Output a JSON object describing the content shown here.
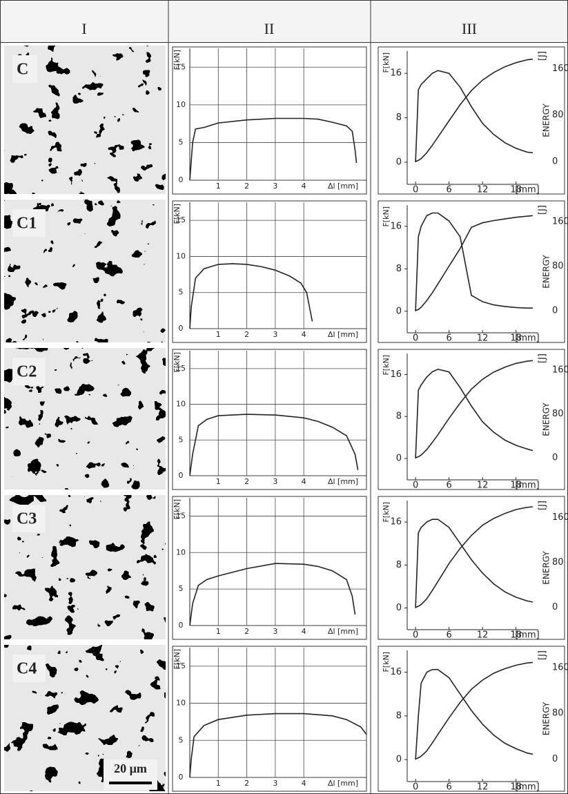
{
  "table": {
    "headers": [
      "I",
      "II",
      "III"
    ]
  },
  "samples": [
    {
      "label": "C"
    },
    {
      "label": "C1"
    },
    {
      "label": "C2"
    },
    {
      "label": "C3"
    },
    {
      "label": "C4"
    }
  ],
  "scale_bar": "20 µm",
  "chart_data": [
    {
      "type": "line",
      "ylabel": "F[kN]",
      "xlabel": "Δl [mm]",
      "color": "#222",
      "grid": true,
      "xlim": [
        0,
        6.2
      ],
      "ylim": [
        0,
        17.5
      ],
      "xticks": [
        1,
        2,
        3,
        4
      ],
      "yticks": [
        0,
        5,
        10,
        15
      ],
      "x": [
        0,
        0.1,
        0.2,
        0.5,
        1,
        2,
        3,
        4,
        4.5,
        5,
        5.5,
        5.7,
        5.8,
        5.85
      ],
      "values": [
        0,
        5,
        6.8,
        7,
        7.6,
        8,
        8.2,
        8.2,
        8.1,
        7.7,
        7.2,
        6.5,
        4,
        2.3
      ]
    },
    {
      "type": "line",
      "ylabel": "F[kN]",
      "xlabel": "[mm]",
      "y2label": "ENERGY",
      "y2unit": "[J]",
      "color": "#222",
      "grid": false,
      "xlim": [
        -1.5,
        22
      ],
      "ylim": [
        -2.5,
        20
      ],
      "y2lim": [
        -25,
        190
      ],
      "xticks": [
        0,
        6,
        12,
        18
      ],
      "yticks": [
        0,
        8,
        16
      ],
      "y2ticks": [
        0,
        80,
        160
      ],
      "x": [
        0,
        0.5,
        1,
        2,
        3,
        4,
        6,
        8,
        10,
        12,
        14,
        16,
        18,
        20,
        21
      ],
      "series": [
        {
          "values": [
            0,
            13,
            14,
            15,
            16,
            16.5,
            16,
            13.5,
            10,
            7,
            5,
            3.5,
            2.5,
            1.8,
            1.7
          ]
        },
        {
          "axis": "y2",
          "values": [
            0,
            2,
            5,
            15,
            28,
            42,
            70,
            98,
            122,
            140,
            153,
            163,
            170,
            175,
            176
          ]
        }
      ]
    },
    {
      "type": "line",
      "ylabel": "F[kN]",
      "xlabel": "Δl [mm]",
      "color": "#222",
      "grid": true,
      "xlim": [
        0,
        6.2
      ],
      "ylim": [
        0,
        17.5
      ],
      "xticks": [
        1,
        2,
        3,
        4
      ],
      "yticks": [
        0,
        5,
        10,
        15
      ],
      "x": [
        0,
        0.05,
        0.2,
        0.5,
        1,
        1.5,
        2,
        2.5,
        3,
        3.5,
        3.9,
        4.1,
        4.2,
        4.3
      ],
      "values": [
        0,
        3,
        7,
        8.3,
        8.9,
        9,
        8.9,
        8.6,
        8.1,
        7.3,
        6.3,
        5,
        3,
        1
      ]
    },
    {
      "type": "line",
      "ylabel": "F[kN]",
      "xlabel": "[mm]",
      "y2label": "ENERGY",
      "y2unit": "[J]",
      "color": "#222",
      "grid": false,
      "xlim": [
        -1.5,
        22
      ],
      "ylim": [
        -2.5,
        20
      ],
      "y2lim": [
        -25,
        190
      ],
      "xticks": [
        0,
        6,
        12,
        18
      ],
      "yticks": [
        0,
        8,
        16
      ],
      "y2ticks": [
        0,
        80,
        160
      ],
      "x": [
        0,
        0.5,
        1,
        2,
        3,
        4,
        6,
        8,
        10,
        12,
        14,
        16,
        18,
        20,
        21
      ],
      "series": [
        {
          "values": [
            0,
            14,
            16,
            18,
            18.5,
            18.5,
            17,
            14,
            3,
            1.8,
            1.2,
            0.9,
            0.7,
            0.6,
            0.6
          ]
        },
        {
          "axis": "y2",
          "values": [
            0,
            2,
            6,
            18,
            32,
            48,
            80,
            112,
            150,
            158,
            162,
            165,
            168,
            170,
            171
          ]
        }
      ]
    },
    {
      "type": "line",
      "ylabel": "F[kN]",
      "xlabel": "Δl [mm]",
      "color": "#222",
      "grid": true,
      "xlim": [
        0,
        6.2
      ],
      "ylim": [
        0,
        17.5
      ],
      "xticks": [
        1,
        2,
        3,
        4
      ],
      "yticks": [
        0,
        5,
        10,
        15
      ],
      "x": [
        0,
        0.1,
        0.3,
        0.6,
        1,
        2,
        3,
        4,
        4.5,
        5,
        5.5,
        5.8,
        5.9
      ],
      "values": [
        0,
        3,
        7,
        7.9,
        8.4,
        8.6,
        8.5,
        8.1,
        7.6,
        6.8,
        5.6,
        3,
        0.8
      ]
    },
    {
      "type": "line",
      "ylabel": "F[kN]",
      "xlabel": "[mm]",
      "y2label": "ENERGY",
      "y2unit": "[J]",
      "color": "#222",
      "grid": false,
      "xlim": [
        -1.5,
        22
      ],
      "ylim": [
        -2.5,
        20
      ],
      "y2lim": [
        -25,
        190
      ],
      "xticks": [
        0,
        6,
        12,
        18
      ],
      "yticks": [
        0,
        8,
        16
      ],
      "y2ticks": [
        0,
        80,
        160
      ],
      "x": [
        0,
        0.5,
        1,
        2,
        3,
        4,
        6,
        8,
        10,
        12,
        14,
        16,
        18,
        20,
        21
      ],
      "series": [
        {
          "values": [
            0,
            13,
            14,
            15.5,
            16.5,
            17,
            16.5,
            13.5,
            10,
            7,
            5,
            3.5,
            2.5,
            1.8,
            1.5
          ]
        },
        {
          "axis": "y2",
          "values": [
            0,
            2,
            5,
            15,
            28,
            42,
            72,
            100,
            125,
            143,
            156,
            165,
            172,
            176,
            177
          ]
        }
      ]
    },
    {
      "type": "line",
      "ylabel": "F[kN]",
      "xlabel": "Δl [mm]",
      "color": "#222",
      "grid": true,
      "xlim": [
        0,
        6.2
      ],
      "ylim": [
        0,
        17.5
      ],
      "xticks": [
        1,
        2,
        3,
        4
      ],
      "yticks": [
        0,
        5,
        10,
        15
      ],
      "x": [
        0,
        0.1,
        0.3,
        0.6,
        1,
        2,
        3,
        4,
        4.5,
        5,
        5.5,
        5.7,
        5.8
      ],
      "values": [
        0,
        3,
        5.5,
        6.3,
        6.8,
        7.8,
        8.5,
        8.4,
        8.1,
        7.5,
        6.3,
        4,
        1.5
      ]
    },
    {
      "type": "line",
      "ylabel": "F[kN]",
      "xlabel": "[mm]",
      "y2label": "ENERGY",
      "y2unit": "[J]",
      "color": "#222",
      "grid": false,
      "xlim": [
        -1.5,
        22
      ],
      "ylim": [
        -2.5,
        20
      ],
      "y2lim": [
        -25,
        190
      ],
      "xticks": [
        0,
        6,
        12,
        18
      ],
      "yticks": [
        0,
        8,
        16
      ],
      "y2ticks": [
        0,
        80,
        160
      ],
      "x": [
        0,
        0.5,
        1,
        2,
        3,
        4,
        6,
        8,
        10,
        12,
        14,
        16,
        18,
        20,
        21
      ],
      "series": [
        {
          "values": [
            0,
            14,
            15,
            16,
            16.5,
            16.5,
            15,
            12,
            9,
            6.5,
            4.5,
            3,
            2,
            1.3,
            1.1
          ]
        },
        {
          "axis": "y2",
          "values": [
            0,
            2,
            5,
            15,
            30,
            46,
            78,
            105,
            128,
            146,
            158,
            167,
            174,
            178,
            179
          ]
        }
      ]
    },
    {
      "type": "line",
      "ylabel": "F[kN]",
      "xlabel": "Δl [mm]",
      "color": "#222",
      "grid": true,
      "xlim": [
        0,
        6.2
      ],
      "ylim": [
        0,
        17.5
      ],
      "xticks": [
        1,
        2,
        3,
        4
      ],
      "yticks": [
        0,
        5,
        10,
        15
      ],
      "x": [
        0,
        0.05,
        0.15,
        0.5,
        1,
        2,
        3,
        4,
        5,
        5.5,
        6,
        6.2
      ],
      "values": [
        0,
        2.5,
        5.5,
        7,
        7.8,
        8.4,
        8.6,
        8.6,
        8.3,
        7.8,
        6.8,
        5.8
      ]
    },
    {
      "type": "line",
      "ylabel": "F[kN]",
      "xlabel": "[mm]",
      "y2label": "ENERGY",
      "y2unit": "[J]",
      "color": "#222",
      "grid": false,
      "xlim": [
        -1.5,
        22
      ],
      "ylim": [
        -2.5,
        20
      ],
      "y2lim": [
        -25,
        190
      ],
      "xticks": [
        0,
        6,
        12,
        18
      ],
      "yticks": [
        0,
        8,
        16
      ],
      "y2ticks": [
        0,
        80,
        160
      ],
      "x": [
        0,
        0.5,
        1,
        2,
        3,
        4,
        6,
        8,
        10,
        12,
        14,
        16,
        18,
        20,
        21
      ],
      "series": [
        {
          "values": [
            0,
            8,
            14,
            16,
            16.5,
            16.5,
            15,
            12,
            9,
            6.5,
            4.5,
            3,
            2,
            1.2,
            1
          ]
        },
        {
          "axis": "y2",
          "values": [
            0,
            2,
            5,
            14,
            28,
            43,
            72,
            99,
            122,
            138,
            150,
            158,
            164,
            168,
            169
          ]
        }
      ]
    }
  ]
}
